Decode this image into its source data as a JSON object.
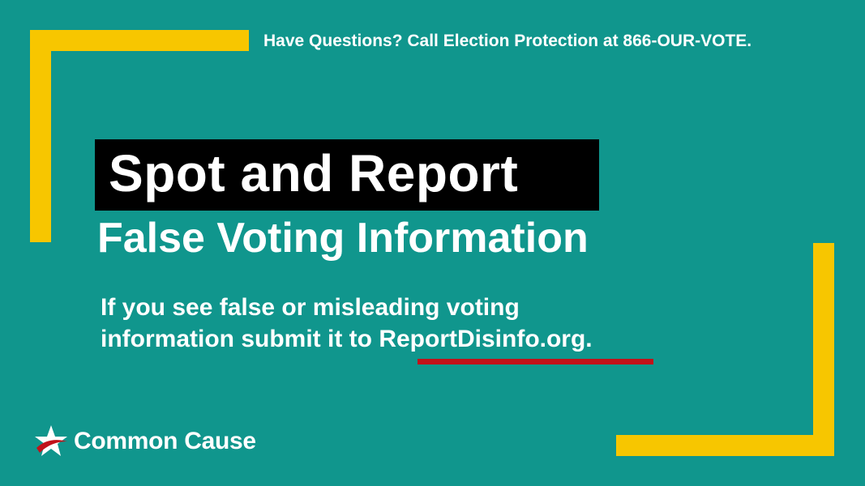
{
  "hotline": "Have Questions? Call Election Protection at 866-OUR-VOTE.",
  "headline": "Spot and Report",
  "subheadline": "False Voting Information",
  "body": {
    "line1": "If you see false or misleading voting",
    "line2_prefix": "information submit it to ",
    "link": "ReportDisinfo.org."
  },
  "logo": {
    "name": "Common Cause",
    "icon": "star-swoosh-icon"
  },
  "colors": {
    "background": "#10968d",
    "bracket": "#f7c600",
    "headline_box": "#000000",
    "underline": "#c1121a",
    "text": "#ffffff"
  }
}
